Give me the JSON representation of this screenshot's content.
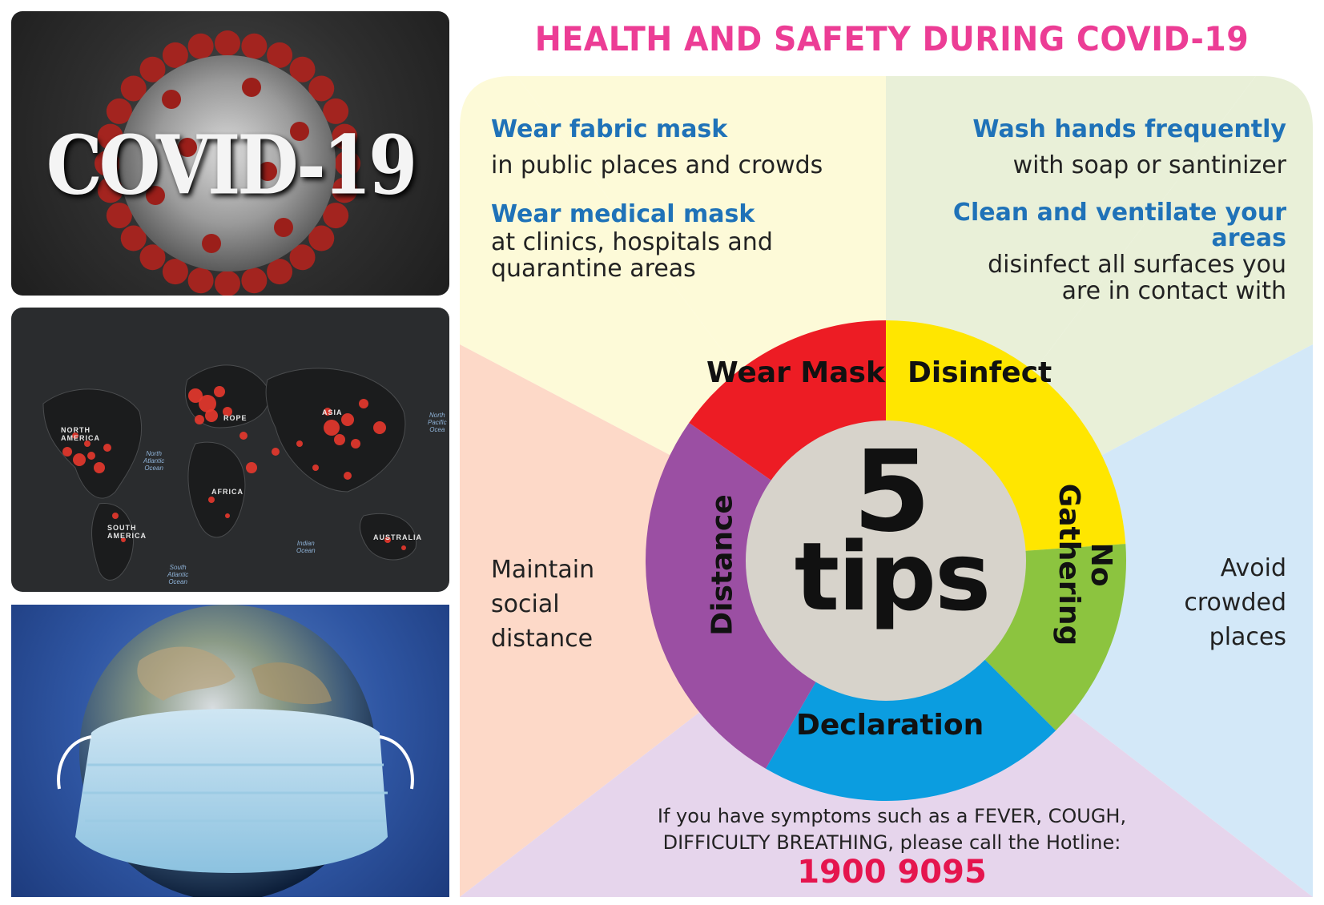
{
  "photos": {
    "covid_label": "COVID-19",
    "map_labels": {
      "north_america": "NORTH\nAMERICA",
      "europe": "ROPE",
      "asia": "ASIA",
      "africa": "AFRICA",
      "south_america": "SOUTH\nAMERICA",
      "australia": "AUSTRALIA",
      "north_atlantic": "North\nAtlantic\nOcean",
      "indian_ocean": "Indian\nOcean",
      "south_atlantic": "South\nAtlantic\nOcean",
      "north_pacific": "North\nPacific\nOcea"
    }
  },
  "infographic": {
    "title": "HEALTH AND SAFETY DURING COVID-19",
    "center": {
      "number": "5",
      "word": "tips"
    },
    "segments": {
      "wear_mask": "Wear Mask",
      "disinfect": "Disinfect",
      "distance": "Distance",
      "no_gathering": "No\nGathering",
      "declaration": "Declaration"
    },
    "tips": {
      "fabric_mask_title": "Wear fabric mask",
      "fabric_mask_text": "in public places and crowds",
      "medical_mask_title": "Wear medical mask",
      "medical_mask_text": "at clinics, hospitals and\nquarantine areas",
      "wash_hands_title": "Wash hands frequently",
      "wash_hands_text": "with soap or santinizer",
      "clean_title": "Clean and ventilate your\nareas",
      "clean_text": "disinfect all surfaces you\nare in contact with",
      "distance_text": "Maintain\nsocial\ndistance",
      "gathering_text": "Avoid\ncrowded\nplaces"
    },
    "symptoms_text": "If you have symptoms such as a FEVER, COUGH,\nDIFFICULTY BREATHING, please call the Hotline:",
    "hotline": "1900 9095",
    "colors": {
      "title": "#ec3d95",
      "wear_mask": "#ffe600",
      "disinfect": "#8cc43f",
      "no_gathering": "#0b9de0",
      "declaration": "#9b4fa3",
      "distance": "#ed1c24",
      "center": "#d7d3cb"
    }
  }
}
